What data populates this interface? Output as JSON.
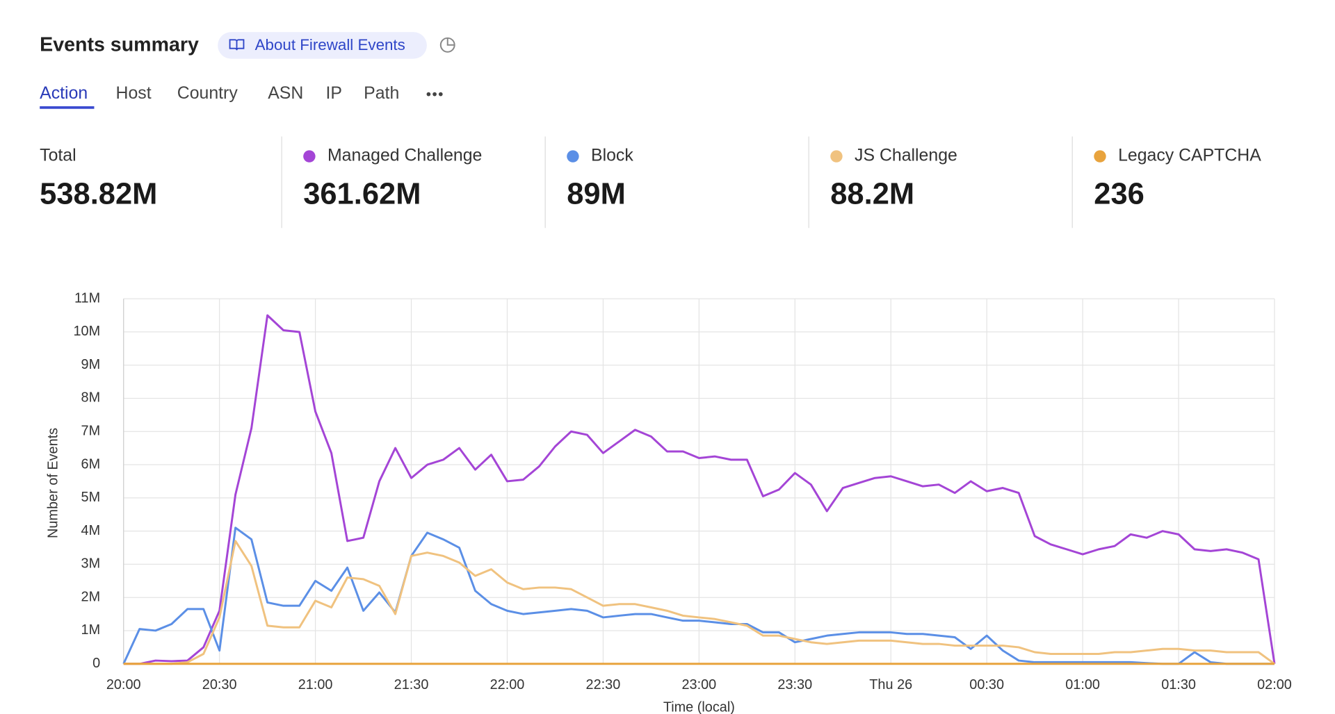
{
  "header": {
    "title": "Events summary",
    "link": "About Firewall Events"
  },
  "tabs": [
    "Action",
    "Host",
    "Country",
    "ASN",
    "IP",
    "Path"
  ],
  "summary": {
    "label": "Total",
    "value": "538.82M"
  },
  "chart_data": {
    "type": "line",
    "ylabel": "Number of Events",
    "xlabel": "Time (local)",
    "x": [
      "20:00",
      "20:05",
      "20:10",
      "20:15",
      "20:20",
      "20:25",
      "20:30",
      "20:35",
      "20:40",
      "20:45",
      "20:50",
      "20:55",
      "21:00",
      "21:05",
      "21:10",
      "21:15",
      "21:20",
      "21:25",
      "21:30",
      "21:35",
      "21:40",
      "21:45",
      "21:50",
      "21:55",
      "22:00",
      "22:05",
      "22:10",
      "22:15",
      "22:20",
      "22:25",
      "22:30",
      "22:35",
      "22:40",
      "22:45",
      "22:50",
      "22:55",
      "23:00",
      "23:05",
      "23:10",
      "23:15",
      "23:20",
      "23:25",
      "23:30",
      "23:35",
      "23:40",
      "23:45",
      "23:50",
      "23:55",
      "00:00",
      "00:05",
      "00:10",
      "00:15",
      "00:20",
      "00:25",
      "00:30",
      "00:35",
      "00:40",
      "00:45",
      "00:50",
      "00:55",
      "01:00",
      "01:05",
      "01:10",
      "01:15",
      "01:20",
      "01:25",
      "01:30",
      "01:35",
      "01:40",
      "01:45",
      "01:50",
      "01:55",
      "02:00"
    ],
    "xticks": [
      "20:00",
      "20:30",
      "21:00",
      "21:30",
      "22:00",
      "22:30",
      "23:00",
      "23:30",
      {
        "value": "00:00",
        "label": "Thu 26"
      },
      "00:30",
      "01:00",
      "01:30",
      "02:00"
    ],
    "ylim": [
      0,
      11000000
    ],
    "yticks": [
      0,
      {
        "value": 1000000,
        "label": "1M"
      },
      {
        "value": 2000000,
        "label": "2M"
      },
      {
        "value": 3000000,
        "label": "3M"
      },
      {
        "value": 4000000,
        "label": "4M"
      },
      {
        "value": 5000000,
        "label": "5M"
      },
      {
        "value": 6000000,
        "label": "6M"
      },
      {
        "value": 7000000,
        "label": "7M"
      },
      {
        "value": 8000000,
        "label": "8M"
      },
      {
        "value": 9000000,
        "label": "9M"
      },
      {
        "value": 10000000,
        "label": "10M"
      },
      {
        "value": 11000000,
        "label": "11M"
      }
    ],
    "grid": true,
    "series": [
      {
        "name": "Managed Challenge",
        "total": "361.62M",
        "color": "#a445d6",
        "values": [
          0,
          0,
          100000,
          80000,
          100000,
          500000,
          1600000,
          5100000,
          7100000,
          10500000,
          10050000,
          10000000,
          7600000,
          6350000,
          3700000,
          3800000,
          5500000,
          6500000,
          5600000,
          6000000,
          6150000,
          6500000,
          5850000,
          6300000,
          5500000,
          5550000,
          5950000,
          6550000,
          7000000,
          6900000,
          6350000,
          6700000,
          7050000,
          6850000,
          6400000,
          6400000,
          6200000,
          6250000,
          6150000,
          6150000,
          5050000,
          5250000,
          5750000,
          5400000,
          4600000,
          5300000,
          5450000,
          5600000,
          5650000,
          5500000,
          5350000,
          5400000,
          5150000,
          5500000,
          5200000,
          5300000,
          5150000,
          3850000,
          3600000,
          3450000,
          3300000,
          3450000,
          3550000,
          3900000,
          3800000,
          4000000,
          3900000,
          3450000,
          3400000,
          3450000,
          3350000,
          3150000,
          0
        ]
      },
      {
        "name": "Block",
        "total": "89M",
        "color": "#5b8fe6",
        "values": [
          0,
          1050000,
          1000000,
          1200000,
          1650000,
          1650000,
          400000,
          4100000,
          3750000,
          1850000,
          1750000,
          1750000,
          2500000,
          2200000,
          2900000,
          1600000,
          2150000,
          1550000,
          3250000,
          3950000,
          3750000,
          3500000,
          2200000,
          1800000,
          1600000,
          1500000,
          1550000,
          1600000,
          1650000,
          1600000,
          1400000,
          1450000,
          1500000,
          1500000,
          1400000,
          1300000,
          1300000,
          1250000,
          1200000,
          1200000,
          950000,
          950000,
          650000,
          750000,
          850000,
          900000,
          950000,
          950000,
          950000,
          900000,
          900000,
          850000,
          800000,
          450000,
          850000,
          400000,
          100000,
          50000,
          50000,
          50000,
          50000,
          50000,
          50000,
          50000,
          20000,
          0,
          0,
          350000,
          50000,
          0,
          0,
          0,
          0
        ]
      },
      {
        "name": "JS Challenge",
        "total": "88.2M",
        "color": "#f0c27f",
        "values": [
          0,
          0,
          0,
          0,
          50000,
          300000,
          1400000,
          3700000,
          2950000,
          1150000,
          1100000,
          1100000,
          1900000,
          1700000,
          2600000,
          2550000,
          2350000,
          1500000,
          3250000,
          3350000,
          3250000,
          3050000,
          2650000,
          2850000,
          2450000,
          2250000,
          2300000,
          2300000,
          2250000,
          2000000,
          1750000,
          1800000,
          1800000,
          1700000,
          1600000,
          1450000,
          1400000,
          1350000,
          1250000,
          1150000,
          850000,
          850000,
          750000,
          650000,
          600000,
          650000,
          700000,
          700000,
          700000,
          650000,
          600000,
          600000,
          550000,
          550000,
          550000,
          550000,
          500000,
          350000,
          300000,
          300000,
          300000,
          300000,
          350000,
          350000,
          400000,
          450000,
          450000,
          400000,
          400000,
          350000,
          350000,
          350000,
          0
        ]
      },
      {
        "name": "Legacy CAPTCHA",
        "total": "236",
        "color": "#e8a33d",
        "values": [
          0,
          0,
          0,
          0,
          0,
          0,
          0,
          0,
          0,
          0,
          0,
          0,
          0,
          0,
          0,
          0,
          0,
          0,
          0,
          0,
          0,
          0,
          0,
          0,
          0,
          0,
          0,
          0,
          0,
          0,
          0,
          0,
          0,
          0,
          0,
          0,
          0,
          0,
          0,
          0,
          0,
          0,
          0,
          0,
          0,
          0,
          0,
          0,
          0,
          0,
          0,
          0,
          0,
          0,
          0,
          0,
          0,
          0,
          0,
          0,
          0,
          0,
          0,
          0,
          0,
          0,
          0,
          0,
          0,
          0,
          0,
          0,
          0
        ]
      }
    ]
  }
}
